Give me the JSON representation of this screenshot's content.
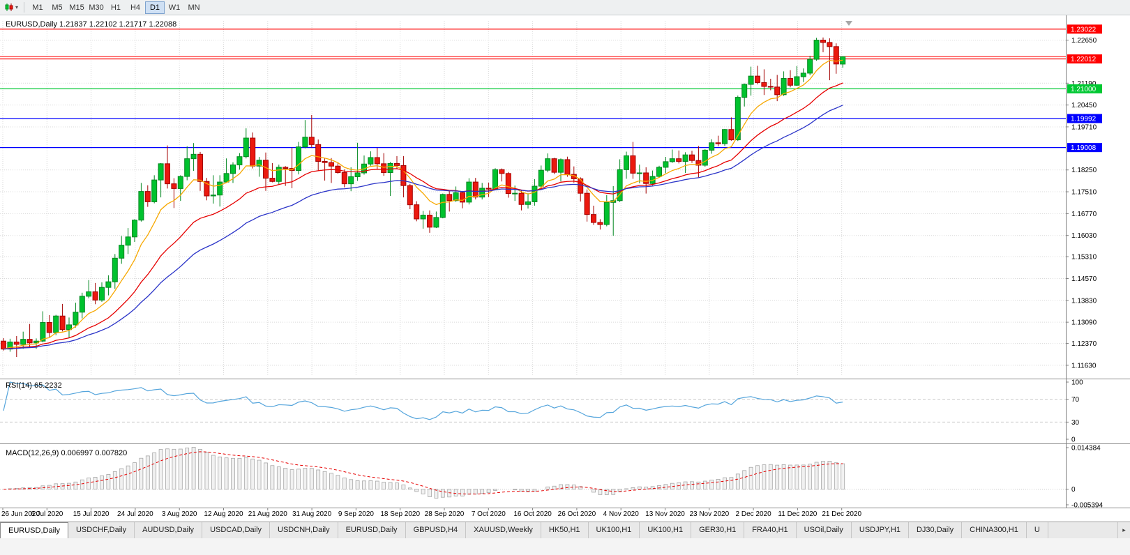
{
  "toolbar": {
    "chart_type_tooltip": "Charts",
    "timeframes": [
      "M1",
      "M5",
      "M15",
      "M30",
      "H1",
      "H4",
      "D1",
      "W1",
      "MN"
    ],
    "active_timeframe": "D1"
  },
  "chart_data": {
    "type": "candlestick",
    "symbol": "EURUSD",
    "period": "Daily",
    "title": "EURUSD,Daily",
    "ohlc_label": "1.21837 1.22102 1.21717 1.22088",
    "current": {
      "open": 1.21837,
      "high": 1.22102,
      "low": 1.21717,
      "close": 1.22088
    },
    "price_range": [
      1.1125,
      1.233
    ],
    "grid": true,
    "date_ticks": [
      "26 Jun 2020",
      "6 Jul 2020",
      "15 Jul 2020",
      "24 Jul 2020",
      "3 Aug 2020",
      "12 Aug 2020",
      "21 Aug 2020",
      "31 Aug 2020",
      "9 Sep 2020",
      "18 Sep 2020",
      "28 Sep 2020",
      "7 Oct 2020",
      "16 Oct 2020",
      "26 Oct 2020",
      "4 Nov 2020",
      "13 Nov 2020",
      "23 Nov 2020",
      "2 Dec 2020",
      "11 Dec 2020",
      "21 Dec 2020"
    ],
    "price_ticks": [
      {
        "value": 1.2265,
        "label": "1.22650"
      },
      {
        "value": 1.2119,
        "label": "1.21190"
      },
      {
        "value": 1.2045,
        "label": "1.20450"
      },
      {
        "value": 1.1971,
        "label": "1.19710"
      },
      {
        "value": 1.1825,
        "label": "1.18250"
      },
      {
        "value": 1.1751,
        "label": "1.17510"
      },
      {
        "value": 1.1677,
        "label": "1.16770"
      },
      {
        "value": 1.1603,
        "label": "1.16030"
      },
      {
        "value": 1.1531,
        "label": "1.15310"
      },
      {
        "value": 1.1457,
        "label": "1.14570"
      },
      {
        "value": 1.1383,
        "label": "1.13830"
      },
      {
        "value": 1.1309,
        "label": "1.13090"
      },
      {
        "value": 1.1237,
        "label": "1.12370"
      },
      {
        "value": 1.1163,
        "label": "1.11630"
      }
    ],
    "levels": [
      {
        "value": 1.23022,
        "label": "1.23022",
        "color": "#ff0000"
      },
      {
        "value": 1.22012,
        "label": "1.22012",
        "color": "#ff0000"
      },
      {
        "value": 1.21,
        "label": "1.21000",
        "color": "#00c832"
      },
      {
        "value": 1.19992,
        "label": "1.19992",
        "color": "#0000ff"
      },
      {
        "value": 1.19008,
        "label": "1.19008",
        "color": "#0000ff"
      }
    ],
    "bid_price": 1.22088,
    "moving_averages": [
      {
        "period": 8,
        "method": "ema",
        "color": "#f7a800"
      },
      {
        "period": 20,
        "method": "ema",
        "color": "#e60000"
      },
      {
        "period": 34,
        "method": "ema",
        "color": "#2b34c8"
      }
    ],
    "ohlc": [
      [
        1.1245,
        1.1255,
        1.1213,
        1.1218
      ],
      [
        1.1218,
        1.1253,
        1.1209,
        1.1242
      ],
      [
        1.1242,
        1.1262,
        1.1191,
        1.1234
      ],
      [
        1.1234,
        1.1277,
        1.1219,
        1.1251
      ],
      [
        1.1251,
        1.1303,
        1.1224,
        1.1239
      ],
      [
        1.1239,
        1.1254,
        1.1219,
        1.1245
      ],
      [
        1.1245,
        1.1346,
        1.1241,
        1.1308
      ],
      [
        1.1308,
        1.1333,
        1.1259,
        1.1274
      ],
      [
        1.1274,
        1.1334,
        1.1265,
        1.133
      ],
      [
        1.133,
        1.1371,
        1.1278,
        1.1284
      ],
      [
        1.1284,
        1.1325,
        1.1255,
        1.13
      ],
      [
        1.13,
        1.1375,
        1.1291,
        1.1343
      ],
      [
        1.1343,
        1.1409,
        1.1322,
        1.1397
      ],
      [
        1.1397,
        1.1452,
        1.139,
        1.1412
      ],
      [
        1.1412,
        1.1442,
        1.137,
        1.1384
      ],
      [
        1.1384,
        1.1444,
        1.1378,
        1.1427
      ],
      [
        1.1427,
        1.1468,
        1.14,
        1.1446
      ],
      [
        1.1446,
        1.154,
        1.1422,
        1.1526
      ],
      [
        1.1526,
        1.1601,
        1.1507,
        1.157
      ],
      [
        1.157,
        1.1628,
        1.154,
        1.1598
      ],
      [
        1.1598,
        1.1658,
        1.1581,
        1.1655
      ],
      [
        1.1655,
        1.1781,
        1.165,
        1.1752
      ],
      [
        1.1752,
        1.1773,
        1.17,
        1.1717
      ],
      [
        1.1717,
        1.1807,
        1.1712,
        1.1791
      ],
      [
        1.1791,
        1.1848,
        1.1732,
        1.1846
      ],
      [
        1.1846,
        1.1908,
        1.1762,
        1.1778
      ],
      [
        1.1778,
        1.1797,
        1.1696,
        1.1762
      ],
      [
        1.1762,
        1.1807,
        1.172,
        1.1803
      ],
      [
        1.1803,
        1.1905,
        1.179,
        1.1863
      ],
      [
        1.1863,
        1.1916,
        1.1822,
        1.1878
      ],
      [
        1.1878,
        1.1886,
        1.1754,
        1.1786
      ],
      [
        1.1786,
        1.1798,
        1.1722,
        1.1737
      ],
      [
        1.1737,
        1.1807,
        1.1711,
        1.174
      ],
      [
        1.174,
        1.1807,
        1.1701,
        1.1784
      ],
      [
        1.1784,
        1.1864,
        1.1782,
        1.1813
      ],
      [
        1.1813,
        1.1851,
        1.1781,
        1.1842
      ],
      [
        1.1842,
        1.1882,
        1.1826,
        1.187
      ],
      [
        1.187,
        1.1966,
        1.1864,
        1.1933
      ],
      [
        1.1933,
        1.1952,
        1.183,
        1.1838
      ],
      [
        1.1838,
        1.1869,
        1.1802,
        1.1858
      ],
      [
        1.1858,
        1.1884,
        1.1754,
        1.1797
      ],
      [
        1.1797,
        1.1848,
        1.1783,
        1.1786
      ],
      [
        1.1786,
        1.1843,
        1.1775,
        1.1834
      ],
      [
        1.1834,
        1.1838,
        1.1771,
        1.183
      ],
      [
        1.183,
        1.1901,
        1.1763,
        1.1823
      ],
      [
        1.1823,
        1.192,
        1.181,
        1.1903
      ],
      [
        1.1903,
        1.1994,
        1.1898,
        1.1936
      ],
      [
        1.1936,
        1.2011,
        1.1901,
        1.1911
      ],
      [
        1.1911,
        1.1928,
        1.1823,
        1.1854
      ],
      [
        1.1854,
        1.1865,
        1.1789,
        1.185
      ],
      [
        1.185,
        1.1865,
        1.1781,
        1.1838
      ],
      [
        1.1838,
        1.1848,
        1.1812,
        1.1816
      ],
      [
        1.1816,
        1.1827,
        1.1766,
        1.1778
      ],
      [
        1.1778,
        1.1834,
        1.1753,
        1.1802
      ],
      [
        1.1802,
        1.1917,
        1.1788,
        1.1815
      ],
      [
        1.1815,
        1.1874,
        1.1809,
        1.1845
      ],
      [
        1.1845,
        1.1888,
        1.1839,
        1.1867
      ],
      [
        1.1867,
        1.19,
        1.1829,
        1.1846
      ],
      [
        1.1846,
        1.1882,
        1.1805,
        1.1816
      ],
      [
        1.1816,
        1.1852,
        1.1737,
        1.1847
      ],
      [
        1.1847,
        1.1872,
        1.1827,
        1.184
      ],
      [
        1.184,
        1.1872,
        1.1732,
        1.1772
      ],
      [
        1.1772,
        1.1778,
        1.1692,
        1.1707
      ],
      [
        1.1707,
        1.1719,
        1.1651,
        1.1659
      ],
      [
        1.1659,
        1.1686,
        1.1626,
        1.1672
      ],
      [
        1.1672,
        1.1688,
        1.1612,
        1.1631
      ],
      [
        1.1631,
        1.1684,
        1.1628,
        1.1664
      ],
      [
        1.1664,
        1.1745,
        1.1661,
        1.1742
      ],
      [
        1.1742,
        1.1755,
        1.1684,
        1.1721
      ],
      [
        1.1721,
        1.1769,
        1.1717,
        1.1748
      ],
      [
        1.1748,
        1.1751,
        1.1695,
        1.1716
      ],
      [
        1.1716,
        1.1797,
        1.1708,
        1.1784
      ],
      [
        1.1784,
        1.1798,
        1.1725,
        1.1733
      ],
      [
        1.1733,
        1.1781,
        1.1725,
        1.1763
      ],
      [
        1.1763,
        1.1782,
        1.1733,
        1.176
      ],
      [
        1.176,
        1.1831,
        1.1756,
        1.1826
      ],
      [
        1.1826,
        1.183,
        1.1786,
        1.1813
      ],
      [
        1.1813,
        1.1818,
        1.1731,
        1.1745
      ],
      [
        1.1745,
        1.1772,
        1.172,
        1.1746
      ],
      [
        1.1746,
        1.1758,
        1.1688,
        1.1708
      ],
      [
        1.1708,
        1.1746,
        1.1694,
        1.1717
      ],
      [
        1.1717,
        1.1794,
        1.1704,
        1.177
      ],
      [
        1.177,
        1.184,
        1.176,
        1.1824
      ],
      [
        1.1824,
        1.1881,
        1.1817,
        1.1863
      ],
      [
        1.1863,
        1.1866,
        1.1811,
        1.1817
      ],
      [
        1.1817,
        1.1864,
        1.1786,
        1.186
      ],
      [
        1.186,
        1.187,
        1.1802,
        1.181
      ],
      [
        1.181,
        1.1837,
        1.1782,
        1.1795
      ],
      [
        1.1795,
        1.18,
        1.1718,
        1.1746
      ],
      [
        1.1746,
        1.1759,
        1.165,
        1.1674
      ],
      [
        1.1674,
        1.1704,
        1.1639,
        1.1647
      ],
      [
        1.1647,
        1.1658,
        1.1623,
        1.164
      ],
      [
        1.164,
        1.174,
        1.1634,
        1.1715
      ],
      [
        1.1715,
        1.177,
        1.1602,
        1.1721
      ],
      [
        1.1721,
        1.1861,
        1.1716,
        1.1826
      ],
      [
        1.1826,
        1.1887,
        1.1795,
        1.1873
      ],
      [
        1.1873,
        1.192,
        1.1795,
        1.1814
      ],
      [
        1.1814,
        1.1843,
        1.178,
        1.1815
      ],
      [
        1.1815,
        1.1834,
        1.1745,
        1.1779
      ],
      [
        1.1779,
        1.1823,
        1.1772,
        1.1803
      ],
      [
        1.1803,
        1.1839,
        1.1799,
        1.1834
      ],
      [
        1.1834,
        1.1869,
        1.1814,
        1.1853
      ],
      [
        1.1853,
        1.1894,
        1.1849,
        1.1863
      ],
      [
        1.1863,
        1.1891,
        1.1847,
        1.1854
      ],
      [
        1.1854,
        1.1885,
        1.1815,
        1.1876
      ],
      [
        1.1876,
        1.189,
        1.1849,
        1.1857
      ],
      [
        1.1857,
        1.1906,
        1.18,
        1.1841
      ],
      [
        1.1841,
        1.1895,
        1.1836,
        1.1892
      ],
      [
        1.1892,
        1.1929,
        1.188,
        1.1917
      ],
      [
        1.1917,
        1.1941,
        1.1905,
        1.1914
      ],
      [
        1.1914,
        1.1964,
        1.1907,
        1.1962
      ],
      [
        1.1962,
        1.2003,
        1.1924,
        1.1927
      ],
      [
        1.1927,
        1.2077,
        1.1923,
        1.2071
      ],
      [
        1.2071,
        1.2118,
        1.204,
        1.2115
      ],
      [
        1.2115,
        1.2175,
        1.2077,
        1.2143
      ],
      [
        1.2143,
        1.2178,
        1.2115,
        1.2121
      ],
      [
        1.2121,
        1.2166,
        1.2079,
        1.2108
      ],
      [
        1.2108,
        1.2134,
        1.2095,
        1.2106
      ],
      [
        1.2106,
        1.2147,
        1.2058,
        1.208
      ],
      [
        1.208,
        1.2159,
        1.2076,
        1.2135
      ],
      [
        1.2135,
        1.2163,
        1.2105,
        1.2112
      ],
      [
        1.2112,
        1.2177,
        1.211,
        1.2141
      ],
      [
        1.2141,
        1.2169,
        1.2123,
        1.2153
      ],
      [
        1.2153,
        1.2212,
        1.2146,
        1.22
      ],
      [
        1.22,
        1.2273,
        1.2195,
        1.2265
      ],
      [
        1.2265,
        1.2274,
        1.2224,
        1.2257
      ],
      [
        1.2257,
        1.2271,
        1.2129,
        1.2243
      ],
      [
        1.2243,
        1.2254,
        1.2151,
        1.2184
      ],
      [
        1.21837,
        1.22102,
        1.21717,
        1.22088
      ]
    ],
    "rsi": {
      "title": "RSI(14) 65.2232",
      "period": 14,
      "value": 65.2232,
      "levels": [
        70,
        30
      ],
      "axis": [
        {
          "value": 100,
          "label": "100"
        },
        {
          "value": 70,
          "label": "70"
        },
        {
          "value": 30,
          "label": "30"
        },
        {
          "value": 0,
          "label": "0"
        }
      ],
      "color": "#55a5dc"
    },
    "macd": {
      "title": "MACD(12,26,9) 0.006997 0.007820",
      "fast": 12,
      "slow": 26,
      "signal": 9,
      "macd_value": 0.006997,
      "signal_value": 0.00782,
      "scale": [
        -0.005394,
        0.014384
      ],
      "axis": [
        {
          "value": 0.014384,
          "label": "0.014384"
        },
        {
          "value": 0,
          "label": "0"
        },
        {
          "value": -0.005394,
          "label": "-0.005394"
        }
      ],
      "signal_color": "#e60000",
      "hist_fill": "#f1f1f1",
      "hist_stroke": "#a6a6a6"
    },
    "colors": {
      "candle_up": "#00c22e",
      "candle_up_dark": "#00861f",
      "candle_down": "#eb190f",
      "candle_down_dark": "#a30000",
      "grid": "#d9d9d9",
      "axis_text": "#000000"
    }
  },
  "tabs": {
    "items": [
      "EURUSD,Daily",
      "USDCHF,Daily",
      "AUDUSD,Daily",
      "USDCAD,Daily",
      "USDCNH,Daily",
      "EURUSD,Daily",
      "GBPUSD,H4",
      "XAUUSD,Weekly",
      "HK50,H1",
      "UK100,H1",
      "UK100,H1",
      "GER30,H1",
      "FRA40,H1",
      "USOil,Daily",
      "USDJPY,H1",
      "DJ30,Daily",
      "CHINA300,H1",
      "U"
    ],
    "active_index": 0,
    "scroll_right_icon": "▸"
  }
}
